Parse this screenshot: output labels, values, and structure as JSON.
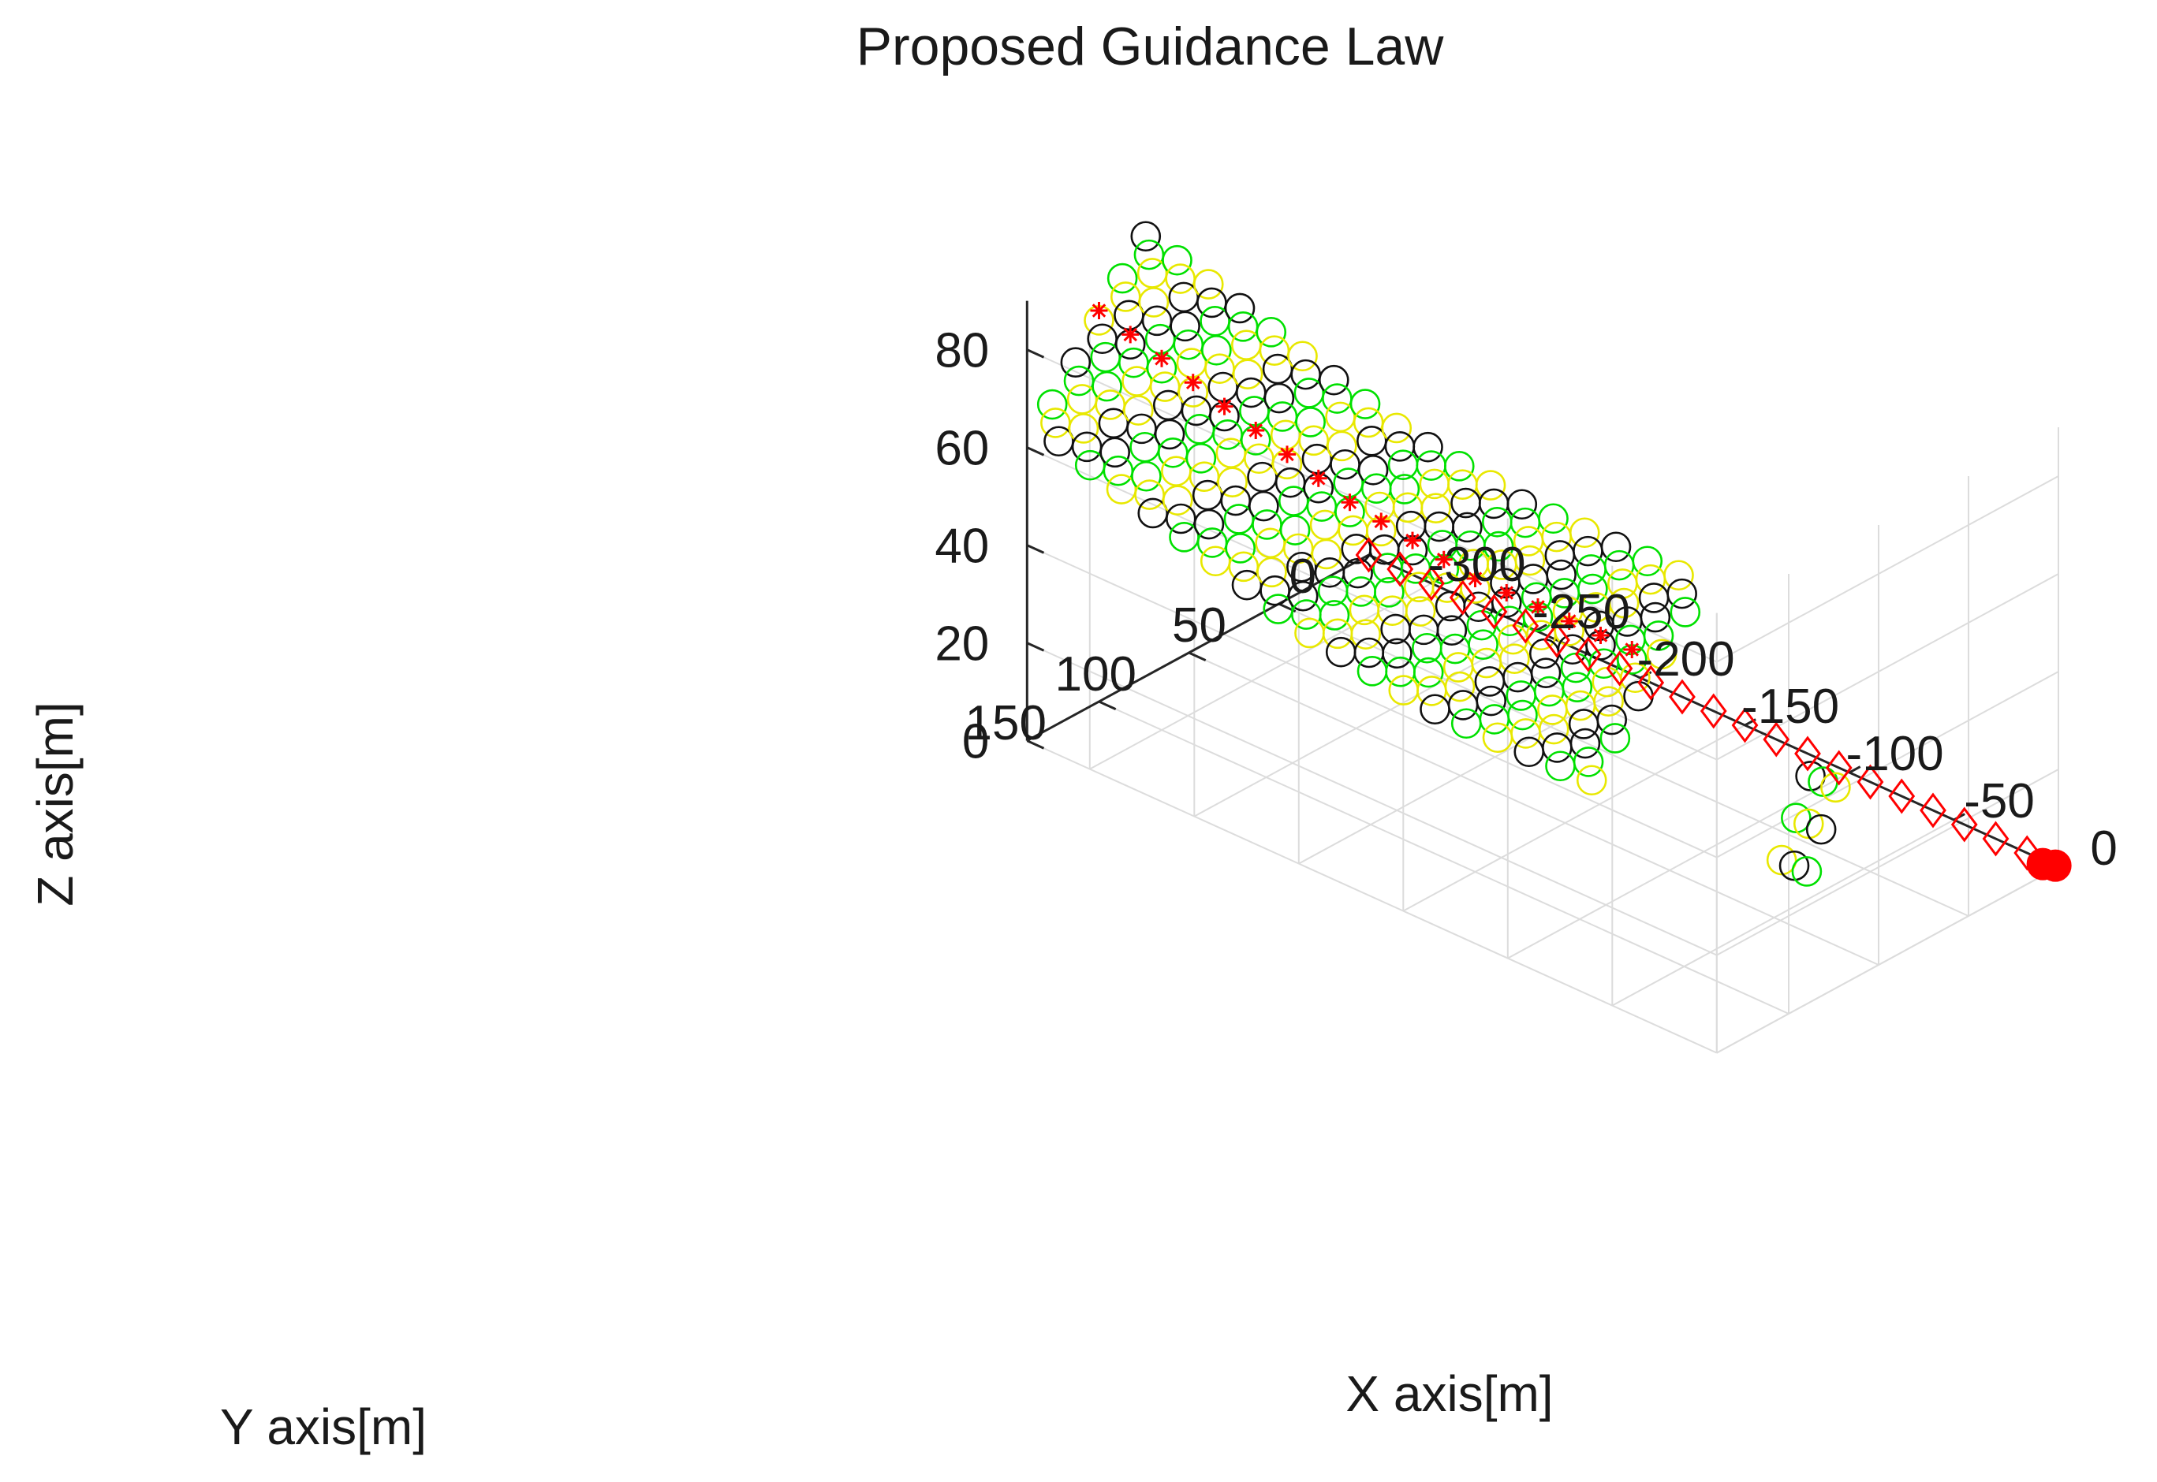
{
  "chart_data": {
    "type": "scatter3d",
    "title": "Proposed Guidance Law",
    "xlabel": "X axis[m]",
    "ylabel": "Y axis[m]",
    "zlabel": "Z axis[m]",
    "xlim": [
      -330,
      0
    ],
    "ylim": [
      0,
      190
    ],
    "zlim": [
      0,
      90
    ],
    "grid": true,
    "x_ticks": [
      "-300",
      "-250",
      "-200",
      "-150",
      "-100",
      "-50",
      "0"
    ],
    "x_tick_values": [
      -300,
      -250,
      -200,
      -150,
      -100,
      -50,
      0
    ],
    "y_ticks": [
      "0",
      "50",
      "100",
      "150"
    ],
    "y_tick_values": [
      0,
      50,
      100,
      150
    ],
    "z_ticks": [
      "0",
      "20",
      "40",
      "60",
      "80"
    ],
    "z_tick_values": [
      0,
      20,
      40,
      60,
      80
    ],
    "colors": {
      "black_circles": "#111111",
      "green_circles": "#00e000",
      "yellow_circles": "#e8e800",
      "red_markers": "#ff0000",
      "grid": "#dcdcdc",
      "axis": "#262626"
    },
    "series": [
      {
        "name": "target path (diamonds)",
        "marker": "diamond",
        "color": "#ff0000",
        "y": 0,
        "z": 0,
        "x": [
          -330,
          -315,
          -300,
          -285,
          -270,
          -255,
          -240,
          -225,
          -210,
          -195,
          -180,
          -165,
          -150,
          -135,
          -120,
          -105,
          -90,
          -75,
          -60,
          -45,
          -30,
          -15
        ]
      },
      {
        "name": "target final position",
        "marker": "filled-circle",
        "color": "#ff0000",
        "points": [
          [
            -2,
            2,
            0
          ]
        ]
      },
      {
        "name": "swarm leader trajectory (red stars)",
        "marker": "star",
        "color": "#ff0000",
        "points": [
          [
            -330,
            150,
            80
          ],
          [
            -315,
            150,
            78
          ],
          [
            -300,
            150,
            76
          ],
          [
            -285,
            150,
            74
          ],
          [
            -270,
            150,
            72
          ],
          [
            -255,
            150,
            70
          ],
          [
            -240,
            150,
            68
          ],
          [
            -225,
            150,
            66
          ],
          [
            -210,
            150,
            64
          ],
          [
            -195,
            150,
            63
          ],
          [
            -180,
            150,
            62
          ],
          [
            -165,
            150,
            61
          ],
          [
            -150,
            150,
            60
          ],
          [
            -135,
            150,
            60
          ],
          [
            -120,
            150,
            60
          ],
          [
            -105,
            150,
            60
          ],
          [
            -90,
            150,
            60
          ],
          [
            -75,
            150,
            60
          ]
        ]
      },
      {
        "name": "swarm member positions (black circles)",
        "marker": "open-circle",
        "color": "#111111",
        "description_cluster": "grid of circles around leader trajectory, 5 rows spaced ~12 m in y and ~6 m in z"
      },
      {
        "name": "swarm member positions (green circles)",
        "marker": "open-circle",
        "color": "#00e000"
      },
      {
        "name": "swarm member positions (yellow circles)",
        "marker": "open-circle",
        "color": "#e8e800"
      },
      {
        "name": "final swarm cluster",
        "marker": "open-circle",
        "color": "#00e000",
        "points": [
          [
            -20,
            120,
            30
          ]
        ]
      }
    ]
  }
}
